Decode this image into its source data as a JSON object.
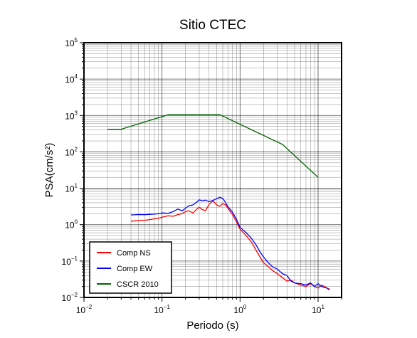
{
  "chart_data": {
    "type": "line",
    "title": "Sitio CTEC",
    "xlabel": "Periodo (s)",
    "ylabel": "PSA(cm/s²)",
    "x_scale": "log",
    "y_scale": "log",
    "xlim": [
      0.01,
      20
    ],
    "ylim": [
      0.01,
      100000
    ],
    "grid": true,
    "legend_position": "bottom-left",
    "x_ticks": [
      {
        "base": "10",
        "exp": "−2",
        "value": 0.01
      },
      {
        "base": "10",
        "exp": "−1",
        "value": 0.1
      },
      {
        "base": "10",
        "exp": "0",
        "value": 1
      },
      {
        "base": "10",
        "exp": "1",
        "value": 10
      }
    ],
    "y_ticks": [
      {
        "base": "10",
        "exp": "−2",
        "value": 0.01
      },
      {
        "base": "10",
        "exp": "−1",
        "value": 0.1
      },
      {
        "base": "10",
        "exp": "0",
        "value": 1
      },
      {
        "base": "10",
        "exp": "1",
        "value": 10
      },
      {
        "base": "10",
        "exp": "2",
        "value": 100
      },
      {
        "base": "10",
        "exp": "3",
        "value": 1000
      },
      {
        "base": "10",
        "exp": "4",
        "value": 10000
      },
      {
        "base": "10",
        "exp": "5",
        "value": 100000
      }
    ],
    "series": [
      {
        "name": "Comp NS",
        "color": "#ff0000",
        "x": [
          0.04,
          0.05,
          0.06,
          0.07,
          0.08,
          0.09,
          0.1,
          0.12,
          0.14,
          0.16,
          0.18,
          0.2,
          0.22,
          0.25,
          0.28,
          0.3,
          0.33,
          0.36,
          0.4,
          0.45,
          0.5,
          0.55,
          0.6,
          0.65,
          0.7,
          0.8,
          0.9,
          1.0,
          1.2,
          1.4,
          1.6,
          1.8,
          2.0,
          2.3,
          2.6,
          3.0,
          3.5,
          4.0,
          4.5,
          5.0,
          6.0,
          7.0,
          8.0,
          9.0,
          10.0,
          11.0,
          12.0,
          13.0,
          14.0
        ],
        "y": [
          1.25,
          1.3,
          1.32,
          1.38,
          1.45,
          1.5,
          1.6,
          1.75,
          1.7,
          1.9,
          2.0,
          2.3,
          2.4,
          2.1,
          2.7,
          3.0,
          2.6,
          2.4,
          3.6,
          4.5,
          3.5,
          3.2,
          3.8,
          3.5,
          2.8,
          1.9,
          1.2,
          0.75,
          0.5,
          0.33,
          0.2,
          0.13,
          0.09,
          0.07,
          0.055,
          0.045,
          0.035,
          0.028,
          0.03,
          0.025,
          0.022,
          0.02,
          0.024,
          0.02,
          0.018,
          0.022,
          0.02,
          0.018,
          0.017
        ]
      },
      {
        "name": "Comp EW",
        "color": "#0000ff",
        "x": [
          0.04,
          0.05,
          0.06,
          0.07,
          0.08,
          0.09,
          0.1,
          0.12,
          0.14,
          0.16,
          0.18,
          0.2,
          0.22,
          0.25,
          0.28,
          0.3,
          0.33,
          0.36,
          0.4,
          0.45,
          0.5,
          0.55,
          0.6,
          0.65,
          0.7,
          0.8,
          0.9,
          1.0,
          1.2,
          1.4,
          1.6,
          1.8,
          2.0,
          2.3,
          2.6,
          3.0,
          3.5,
          4.0,
          4.5,
          5.0,
          6.0,
          7.0,
          8.0,
          9.0,
          10.0,
          11.0,
          12.0,
          13.0,
          14.0
        ],
        "y": [
          1.85,
          1.9,
          1.88,
          1.92,
          1.95,
          2.0,
          2.1,
          2.05,
          2.3,
          2.7,
          2.4,
          2.8,
          3.3,
          3.5,
          4.2,
          4.8,
          4.5,
          4.7,
          4.3,
          4.6,
          5.2,
          5.6,
          5.3,
          4.1,
          3.1,
          2.2,
          1.4,
          0.85,
          0.6,
          0.42,
          0.28,
          0.18,
          0.13,
          0.09,
          0.07,
          0.06,
          0.045,
          0.04,
          0.028,
          0.025,
          0.024,
          0.022,
          0.025,
          0.02,
          0.024,
          0.02,
          0.019,
          0.018,
          0.016
        ]
      },
      {
        "name": "CSCR 2010",
        "color": "#006400",
        "x": [
          0.02,
          0.03,
          0.12,
          0.55,
          3.5,
          10
        ],
        "y": [
          420,
          420,
          1050,
          1050,
          160,
          20
        ]
      }
    ]
  }
}
